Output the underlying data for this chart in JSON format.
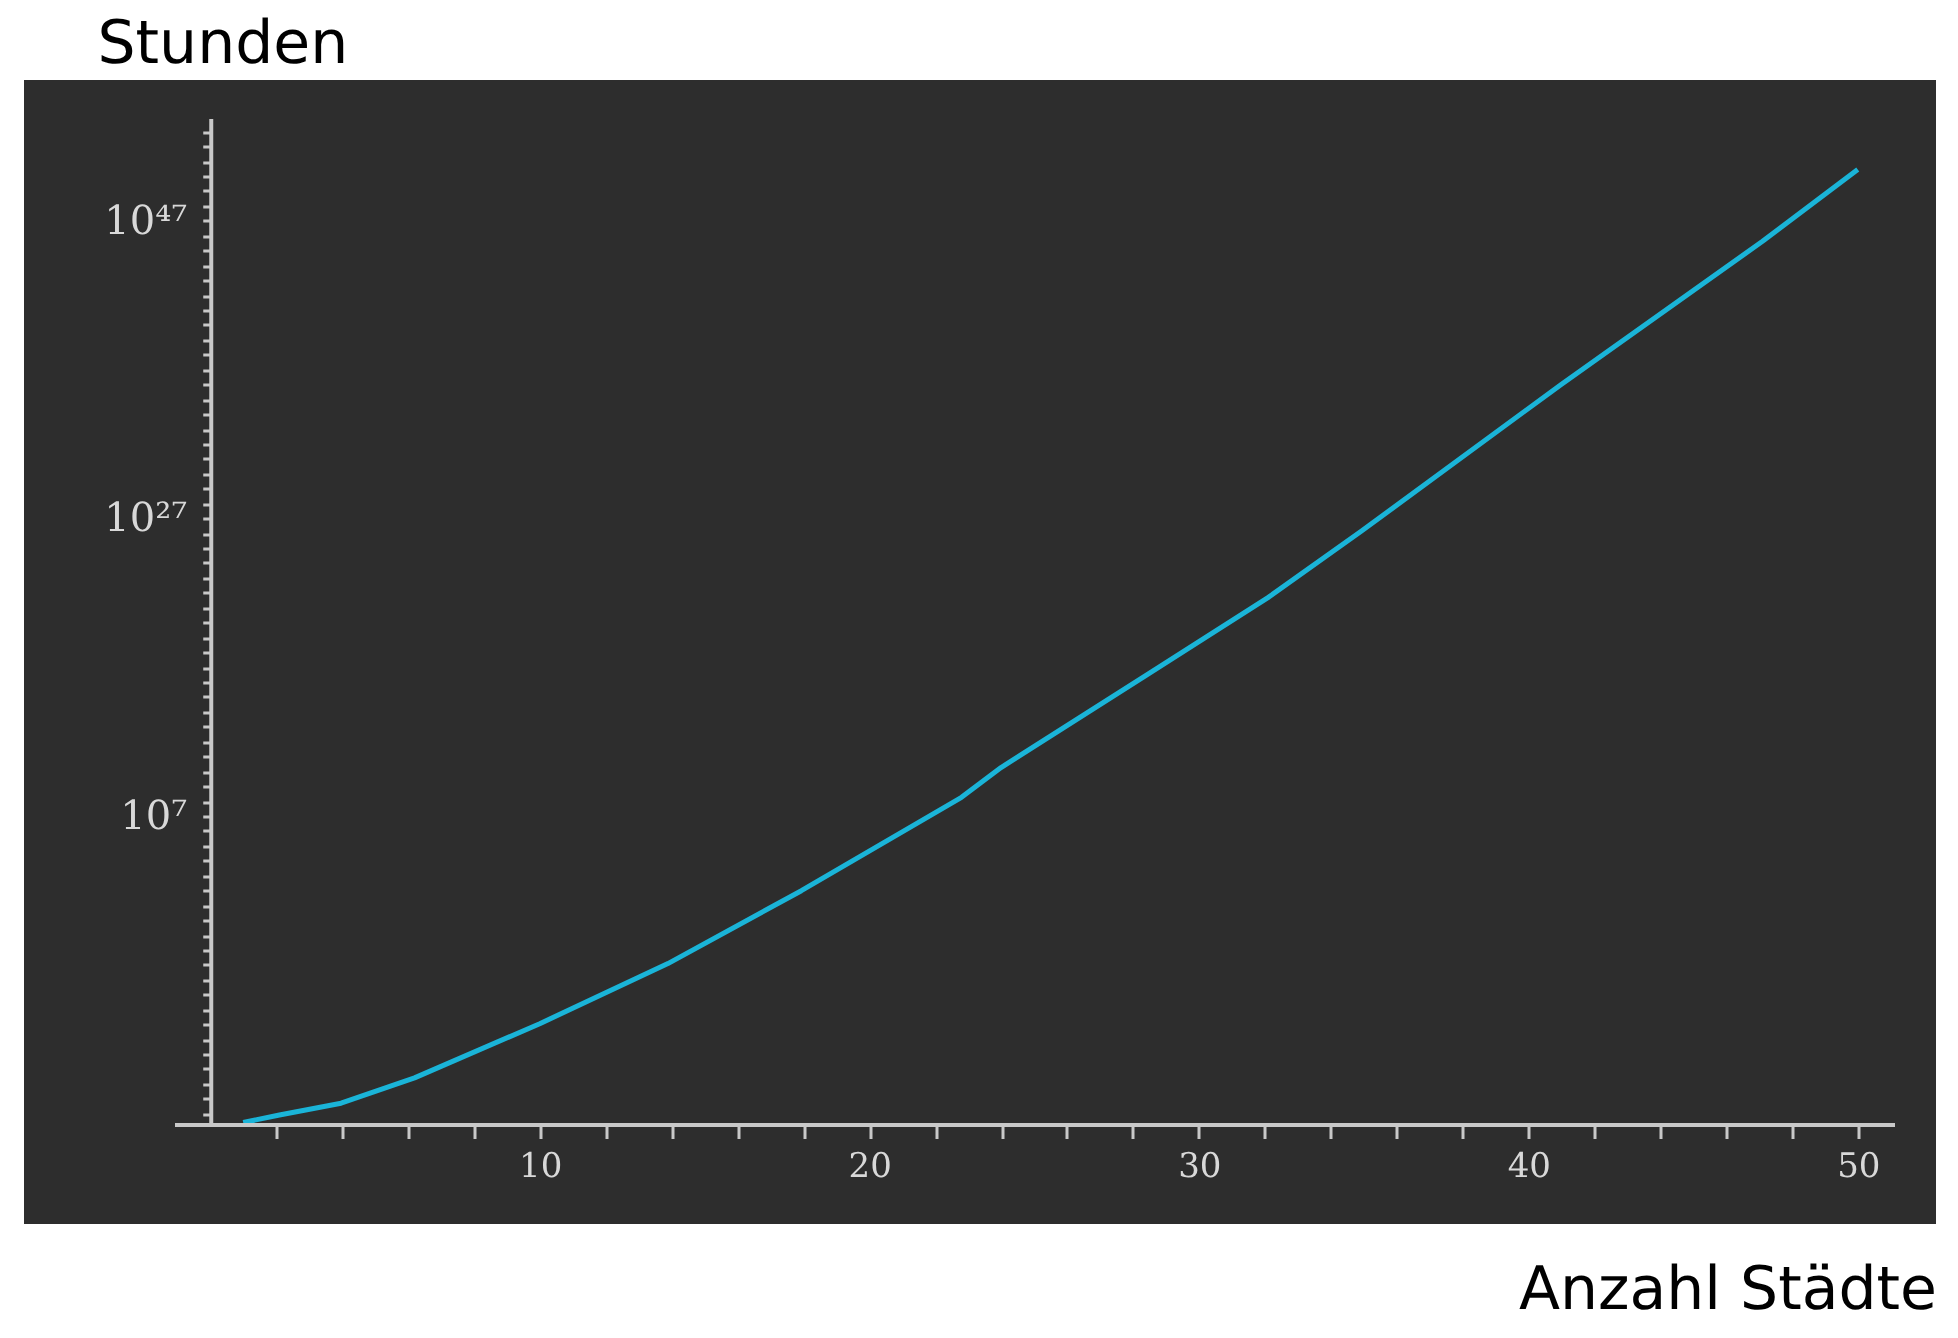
{
  "chart_data": {
    "type": "line",
    "xlabel": "Anzahl Städte",
    "ylabel": "Stunden",
    "x": [
      1,
      2.1,
      3.97,
      6.2,
      10,
      13.89,
      17.94,
      22.8,
      24.0,
      28.46,
      32.1,
      34.94,
      41.0,
      47.1,
      50
    ],
    "series": [
      {
        "color": "#1ab4d8",
        "values": [
          2.5e-14,
          8e-14,
          5e-13,
          2.5e-11,
          1.1e-07,
          0.0012,
          95,
          180000000.0,
          18000000000.0,
          3.4e+16,
          4.7e+21,
          1.4e+26,
          1e+36,
          4e+45,
          2.8e+50
        ]
      }
    ],
    "log": "y",
    "grid": false,
    "marker": "none",
    "line_style": "solid",
    "xlim": [
      -1.1,
      51.1
    ],
    "ylim": [
      2e-14,
      8e+53
    ],
    "xticks": [
      {
        "value": 2,
        "label": null
      },
      {
        "value": 4,
        "label": null
      },
      {
        "value": 6,
        "label": null
      },
      {
        "value": 8,
        "label": null
      },
      10,
      {
        "value": 12,
        "label": null
      },
      {
        "value": 14,
        "label": null
      },
      {
        "value": 16,
        "label": null
      },
      {
        "value": 18,
        "label": null
      },
      20,
      {
        "value": 22,
        "label": null
      },
      {
        "value": 24,
        "label": null
      },
      {
        "value": 26,
        "label": null
      },
      {
        "value": 28,
        "label": null
      },
      30,
      {
        "value": 32,
        "label": null
      },
      {
        "value": 34,
        "label": null
      },
      {
        "value": 36,
        "label": null
      },
      {
        "value": 38,
        "label": null
      },
      40,
      {
        "value": 42,
        "label": null
      },
      {
        "value": 44,
        "label": null
      },
      {
        "value": 46,
        "label": null
      },
      {
        "value": 48,
        "label": null
      },
      50
    ],
    "yticks": [
      {
        "value": 1e-13,
        "label": null
      },
      {
        "value": 1e-12,
        "label": null
      },
      {
        "value": 1e-11,
        "label": null
      },
      {
        "value": 1e-10,
        "label": null
      },
      {
        "value": 1e-09,
        "label": null
      },
      {
        "value": 1e-08,
        "label": null
      },
      {
        "value": 1e-07,
        "label": null
      },
      {
        "value": 1e-06,
        "label": null
      },
      {
        "value": 1e-05,
        "label": null
      },
      {
        "value": 0.0001,
        "label": null
      },
      {
        "value": 0.001,
        "label": null
      },
      {
        "value": 0.01,
        "label": null
      },
      {
        "value": 0.1,
        "label": null
      },
      {
        "value": 1,
        "label": null
      },
      {
        "value": 10.0,
        "label": null
      },
      {
        "value": 100.0,
        "label": null
      },
      {
        "value": 1000.0,
        "label": null
      },
      {
        "value": 10000.0,
        "label": null
      },
      {
        "value": 100000.0,
        "label": null
      },
      {
        "value": 1000000.0,
        "label": null
      },
      {
        "value": 10000000.0,
        "label": "10⁷"
      },
      {
        "value": 100000000.0,
        "label": null
      },
      {
        "value": 1000000000.0,
        "label": null
      },
      {
        "value": 10000000000.0,
        "label": null
      },
      {
        "value": 100000000000.0,
        "label": null
      },
      {
        "value": 1000000000000.0,
        "label": null
      },
      {
        "value": 10000000000000.0,
        "label": null
      },
      {
        "value": 100000000000000.0,
        "label": null
      },
      {
        "value": 1000000000000000.0,
        "label": null
      },
      {
        "value": 1e+16,
        "label": null
      },
      {
        "value": 1e+17,
        "label": null
      },
      {
        "value": 1e+18,
        "label": null
      },
      {
        "value": 1e+19,
        "label": null
      },
      {
        "value": 1e+20,
        "label": null
      },
      {
        "value": 1e+21,
        "label": null
      },
      {
        "value": 1e+22,
        "label": null
      },
      {
        "value": 1e+23,
        "label": null
      },
      {
        "value": 1e+24,
        "label": null
      },
      {
        "value": 1e+25,
        "label": null
      },
      {
        "value": 1e+26,
        "label": null
      },
      {
        "value": 1e+27,
        "label": "10²⁷"
      },
      {
        "value": 1e+28,
        "label": null
      },
      {
        "value": 1e+29,
        "label": null
      },
      {
        "value": 1e+30,
        "label": null
      },
      {
        "value": 1e+31,
        "label": null
      },
      {
        "value": 1e+32,
        "label": null
      },
      {
        "value": 1e+33,
        "label": null
      },
      {
        "value": 1e+34,
        "label": null
      },
      {
        "value": 1e+35,
        "label": null
      },
      {
        "value": 1e+36,
        "label": null
      },
      {
        "value": 1e+37,
        "label": null
      },
      {
        "value": 1e+38,
        "label": null
      },
      {
        "value": 1e+39,
        "label": null
      },
      {
        "value": 1e+40,
        "label": null
      },
      {
        "value": 1e+41,
        "label": null
      },
      {
        "value": 1e+42,
        "label": null
      },
      {
        "value": 1e+43,
        "label": null
      },
      {
        "value": 1e+44,
        "label": null
      },
      {
        "value": 1e+45,
        "label": null
      },
      {
        "value": 1e+46,
        "label": null
      },
      {
        "value": 1e+47,
        "label": "10⁴⁷"
      },
      {
        "value": 1e+48,
        "label": null
      },
      {
        "value": 1e+49,
        "label": null
      },
      {
        "value": 1e+50,
        "label": null
      },
      {
        "value": 1e+51,
        "label": null
      },
      {
        "value": 1e+52,
        "label": null
      },
      {
        "value": 1e+53,
        "label": null
      }
    ]
  }
}
